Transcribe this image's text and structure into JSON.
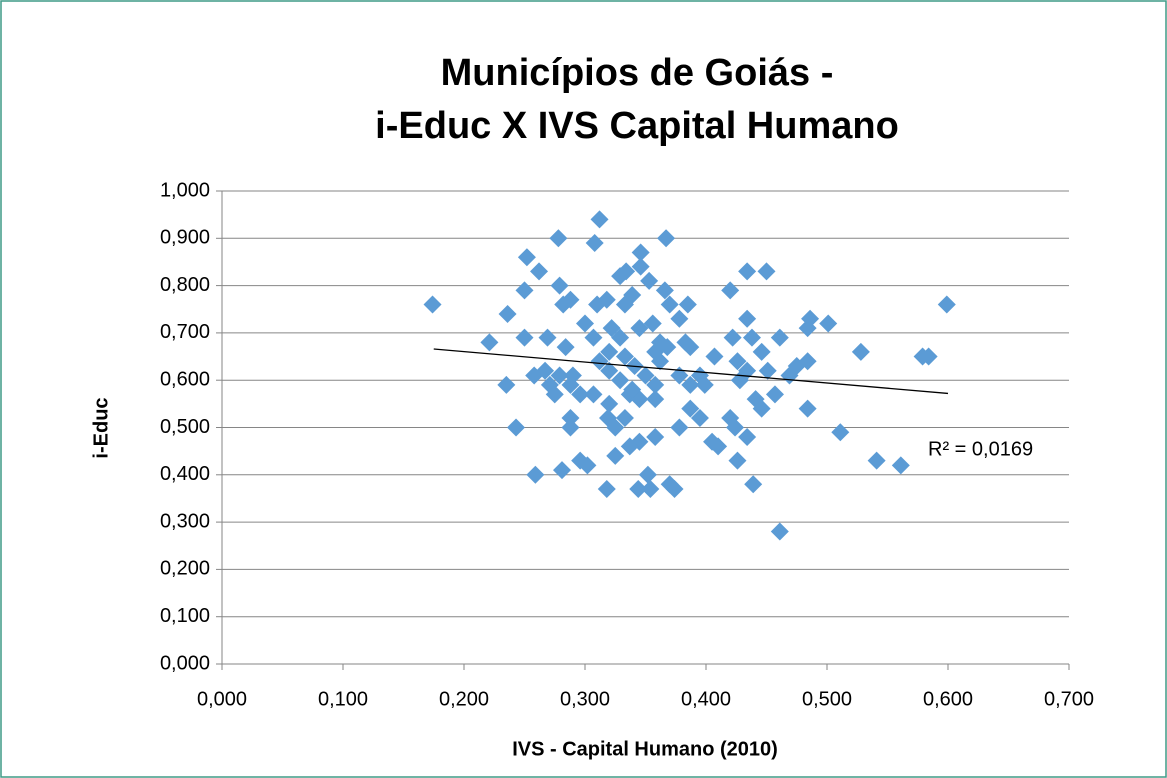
{
  "chart_data": {
    "type": "scatter",
    "title": [
      "Municípios de Goiás -",
      "i-Educ X IVS Capital Humano"
    ],
    "xlabel": "IVS - Capital Humano (2010)",
    "ylabel": "i-Educ",
    "color": "#5b9bd5",
    "grid": true,
    "xlim": [
      0,
      0.7
    ],
    "ylim": [
      0,
      1
    ],
    "xticks": [
      {
        "value": 0,
        "label": "0,000"
      },
      {
        "value": 0.1,
        "label": "0,100"
      },
      {
        "value": 0.2,
        "label": "0,200"
      },
      {
        "value": 0.3,
        "label": "0,300"
      },
      {
        "value": 0.4,
        "label": "0,400"
      },
      {
        "value": 0.5,
        "label": "0,500"
      },
      {
        "value": 0.6,
        "label": "0,600"
      },
      {
        "value": 0.7,
        "label": "0,700"
      }
    ],
    "yticks": [
      {
        "value": 0,
        "label": "0,000"
      },
      {
        "value": 0.1,
        "label": "0,100"
      },
      {
        "value": 0.2,
        "label": "0,200"
      },
      {
        "value": 0.3,
        "label": "0,300"
      },
      {
        "value": 0.4,
        "label": "0,400"
      },
      {
        "value": 0.5,
        "label": "0,500"
      },
      {
        "value": 0.6,
        "label": "0,600"
      },
      {
        "value": 0.7,
        "label": "0,700"
      },
      {
        "value": 0.8,
        "label": "0,800"
      },
      {
        "value": 0.9,
        "label": "0,900"
      },
      {
        "value": 1,
        "label": "1,000"
      }
    ],
    "x": [
      0.174,
      0.221,
      0.236,
      0.235,
      0.243,
      0.252,
      0.25,
      0.262,
      0.25,
      0.259,
      0.278,
      0.279,
      0.288,
      0.282,
      0.269,
      0.284,
      0.258,
      0.267,
      0.271,
      0.275,
      0.288,
      0.29,
      0.288,
      0.288,
      0.281,
      0.296,
      0.302,
      0.312,
      0.308,
      0.31,
      0.318,
      0.329,
      0.334,
      0.346,
      0.346,
      0.353,
      0.339,
      0.367,
      0.366,
      0.37,
      0.378,
      0.385,
      0.3,
      0.307,
      0.322,
      0.329,
      0.345,
      0.356,
      0.362,
      0.368,
      0.383,
      0.387,
      0.312,
      0.32,
      0.333,
      0.341,
      0.35,
      0.358,
      0.329,
      0.337,
      0.345,
      0.32,
      0.319,
      0.325,
      0.333,
      0.345,
      0.358,
      0.337,
      0.325,
      0.318,
      0.344,
      0.352,
      0.354,
      0.37,
      0.374,
      0.378,
      0.378,
      0.387,
      0.395,
      0.399,
      0.395,
      0.407,
      0.405,
      0.41,
      0.42,
      0.422,
      0.426,
      0.428,
      0.42,
      0.424,
      0.426,
      0.434,
      0.434,
      0.45,
      0.438,
      0.446,
      0.434,
      0.434,
      0.441,
      0.446,
      0.439,
      0.451,
      0.457,
      0.461,
      0.461,
      0.469,
      0.475,
      0.484,
      0.486,
      0.484,
      0.484,
      0.501,
      0.511,
      0.528,
      0.541,
      0.561,
      0.579,
      0.584,
      0.599,
      0.32,
      0.358,
      0.362,
      0.307,
      0.279,
      0.296,
      0.333,
      0.339,
      0.387,
      0.358
    ],
    "values": [
      0.76,
      0.68,
      0.74,
      0.59,
      0.5,
      0.86,
      0.79,
      0.83,
      0.69,
      0.4,
      0.9,
      0.8,
      0.77,
      0.76,
      0.69,
      0.67,
      0.61,
      0.62,
      0.59,
      0.57,
      0.59,
      0.61,
      0.52,
      0.5,
      0.41,
      0.43,
      0.42,
      0.94,
      0.89,
      0.76,
      0.77,
      0.82,
      0.83,
      0.87,
      0.84,
      0.81,
      0.78,
      0.9,
      0.79,
      0.76,
      0.73,
      0.76,
      0.72,
      0.69,
      0.71,
      0.69,
      0.71,
      0.72,
      0.68,
      0.67,
      0.68,
      0.67,
      0.64,
      0.62,
      0.65,
      0.63,
      0.61,
      0.59,
      0.6,
      0.57,
      0.56,
      0.55,
      0.52,
      0.5,
      0.52,
      0.47,
      0.48,
      0.46,
      0.44,
      0.37,
      0.37,
      0.4,
      0.37,
      0.38,
      0.37,
      0.5,
      0.61,
      0.59,
      0.61,
      0.59,
      0.52,
      0.65,
      0.47,
      0.46,
      0.79,
      0.69,
      0.64,
      0.6,
      0.52,
      0.5,
      0.43,
      0.73,
      0.83,
      0.83,
      0.69,
      0.66,
      0.62,
      0.48,
      0.56,
      0.54,
      0.38,
      0.62,
      0.57,
      0.69,
      0.28,
      0.61,
      0.63,
      0.64,
      0.73,
      0.71,
      0.54,
      0.72,
      0.49,
      0.66,
      0.43,
      0.42,
      0.65,
      0.65,
      0.76,
      0.66,
      0.56,
      0.64,
      0.57,
      0.61,
      0.57,
      0.76,
      0.58,
      0.54,
      0.66
    ],
    "trendline": {
      "x": [
        0.175,
        0.6
      ],
      "y": [
        0.666,
        0.572
      ],
      "label": "R² = 0,0169"
    }
  }
}
